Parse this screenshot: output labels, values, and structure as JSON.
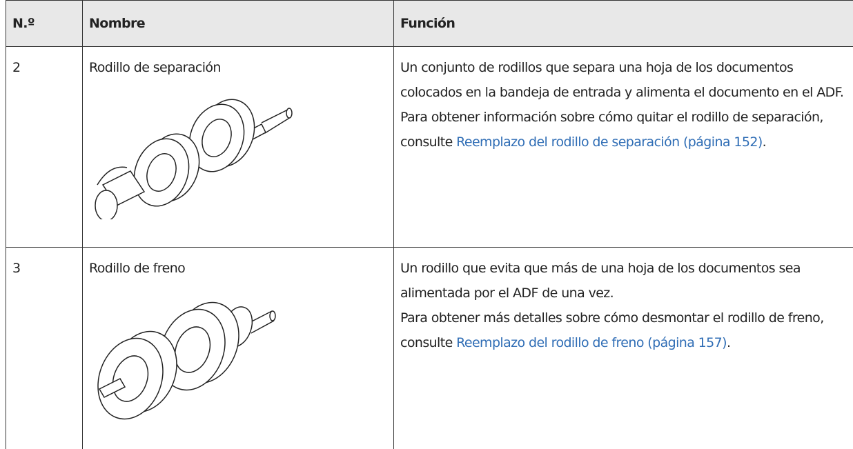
{
  "table": {
    "header": [
      "N.º",
      "Nombre",
      "Función"
    ],
    "rows": [
      {
        "number": "2",
        "name": "Rodillo de separación",
        "description": "Un conjunto de rodillos que separa una hoja de los documentos colocados en la bandeja de entrada y alimenta el documento en el ADF.",
        "detail": "Para obtener información sobre cómo quitar el rodillo de separación, consulte",
        "link": "Reemplazo del rodillo de separación (página 152)",
        "end": "."
      },
      {
        "number": "3",
        "name": "Rodillo de freno",
        "description": "Un rodillo que evita que más de una hoja de los documentos sea alimentada por el ADF de una vez.",
        "detail": "Para obtener más detalles sobre cómo desmontar el rodillo de freno, consulte",
        "link": "Reemplazo del rodillo de freno (página 157)",
        "end": "."
      }
    ]
  }
}
